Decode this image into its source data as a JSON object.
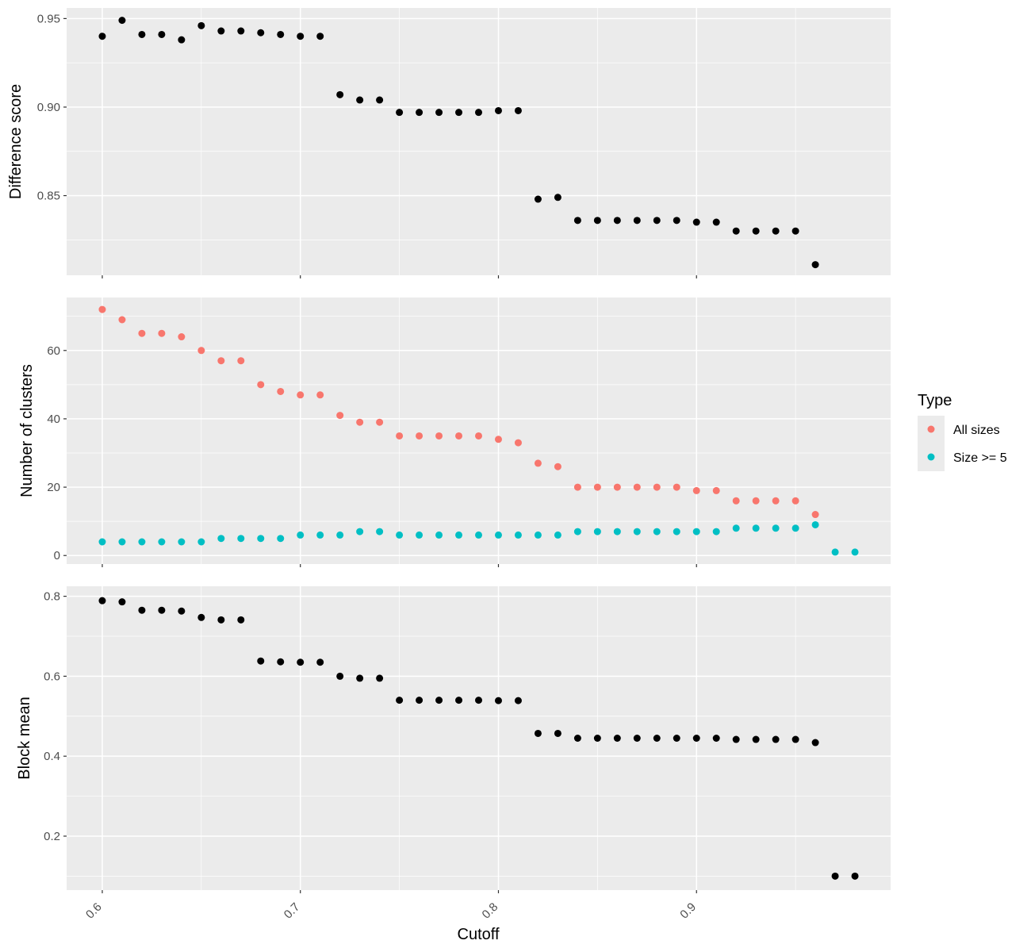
{
  "chart_data": [
    {
      "type": "scatter",
      "ylabel": "Difference score",
      "xlim": [
        0.582,
        0.998
      ],
      "ylim": [
        0.805,
        0.956
      ],
      "y_ticks": [
        "0.85",
        "0.90",
        "0.95"
      ],
      "x": [
        0.6,
        0.61,
        0.62,
        0.63,
        0.64,
        0.65,
        0.66,
        0.67,
        0.68,
        0.69,
        0.7,
        0.71,
        0.72,
        0.73,
        0.74,
        0.75,
        0.76,
        0.77,
        0.78,
        0.79,
        0.8,
        0.81,
        0.82,
        0.83,
        0.84,
        0.85,
        0.86,
        0.87,
        0.88,
        0.89,
        0.9,
        0.91,
        0.92,
        0.93,
        0.94,
        0.95,
        0.96
      ],
      "series": [
        {
          "color": "#000000",
          "values": [
            0.94,
            0.949,
            0.941,
            0.941,
            0.938,
            0.946,
            0.943,
            0.943,
            0.942,
            0.941,
            0.94,
            0.94,
            0.907,
            0.904,
            0.904,
            0.897,
            0.897,
            0.897,
            0.897,
            0.897,
            0.898,
            0.898,
            0.848,
            0.849,
            0.836,
            0.836,
            0.836,
            0.836,
            0.836,
            0.836,
            0.835,
            0.835,
            0.83,
            0.83,
            0.83,
            0.83,
            0.811
          ]
        }
      ]
    },
    {
      "type": "scatter",
      "ylabel": "Number of clusters",
      "xlim": [
        0.582,
        0.998
      ],
      "ylim": [
        -2.5,
        75.5
      ],
      "y_ticks": [
        "0",
        "20",
        "40",
        "60"
      ],
      "x": [
        0.6,
        0.61,
        0.62,
        0.63,
        0.64,
        0.65,
        0.66,
        0.67,
        0.68,
        0.69,
        0.7,
        0.71,
        0.72,
        0.73,
        0.74,
        0.75,
        0.76,
        0.77,
        0.78,
        0.79,
        0.8,
        0.81,
        0.82,
        0.83,
        0.84,
        0.85,
        0.86,
        0.87,
        0.88,
        0.89,
        0.9,
        0.91,
        0.92,
        0.93,
        0.94,
        0.95,
        0.96,
        0.97,
        0.98
      ],
      "series": [
        {
          "name": "All sizes",
          "color": "#F8766D",
          "values": [
            72,
            69,
            65,
            65,
            64,
            60,
            57,
            57,
            50,
            48,
            47,
            47,
            41,
            39,
            39,
            35,
            35,
            35,
            35,
            35,
            34,
            33,
            27,
            26,
            20,
            20,
            20,
            20,
            20,
            20,
            19,
            19,
            16,
            16,
            16,
            16,
            12,
            null,
            null
          ]
        },
        {
          "name": "Size >= 5",
          "color": "#00BFC4",
          "values": [
            4,
            4,
            4,
            4,
            4,
            4,
            5,
            5,
            5,
            5,
            6,
            6,
            6,
            7,
            7,
            6,
            6,
            6,
            6,
            6,
            6,
            6,
            6,
            6,
            7,
            7,
            7,
            7,
            7,
            7,
            7,
            7,
            8,
            8,
            8,
            8,
            9,
            1,
            1
          ]
        }
      ]
    },
    {
      "type": "scatter",
      "ylabel": "Block mean",
      "xlabel": "Cutoff",
      "xlim": [
        0.582,
        0.998
      ],
      "ylim": [
        0.065,
        0.825
      ],
      "y_ticks": [
        "0.2",
        "0.4",
        "0.6",
        "0.8"
      ],
      "x_ticks": [
        "0.6",
        "0.7",
        "0.8",
        "0.9"
      ],
      "x": [
        0.6,
        0.61,
        0.62,
        0.63,
        0.64,
        0.65,
        0.66,
        0.67,
        0.68,
        0.69,
        0.7,
        0.71,
        0.72,
        0.73,
        0.74,
        0.75,
        0.76,
        0.77,
        0.78,
        0.79,
        0.8,
        0.81,
        0.82,
        0.83,
        0.84,
        0.85,
        0.86,
        0.87,
        0.88,
        0.89,
        0.9,
        0.91,
        0.92,
        0.93,
        0.94,
        0.95,
        0.96,
        0.97,
        0.98
      ],
      "series": [
        {
          "color": "#000000",
          "values": [
            0.789,
            0.786,
            0.765,
            0.765,
            0.763,
            0.747,
            0.741,
            0.741,
            0.638,
            0.636,
            0.635,
            0.635,
            0.6,
            0.595,
            0.595,
            0.54,
            0.54,
            0.54,
            0.54,
            0.54,
            0.539,
            0.539,
            0.457,
            0.457,
            0.445,
            0.445,
            0.445,
            0.445,
            0.445,
            0.445,
            0.445,
            0.445,
            0.442,
            0.442,
            0.442,
            0.442,
            0.434,
            0.1,
            0.1
          ]
        }
      ]
    }
  ],
  "legend": {
    "title": "Type",
    "placement": "right",
    "entries": [
      {
        "label": "All sizes",
        "color": "#F8766D"
      },
      {
        "label": "Size >= 5",
        "color": "#00BFC4"
      }
    ]
  },
  "style": {
    "panel_background": "#EBEBEB",
    "grid_color": "#FFFFFF",
    "tick_color": "#333333"
  }
}
